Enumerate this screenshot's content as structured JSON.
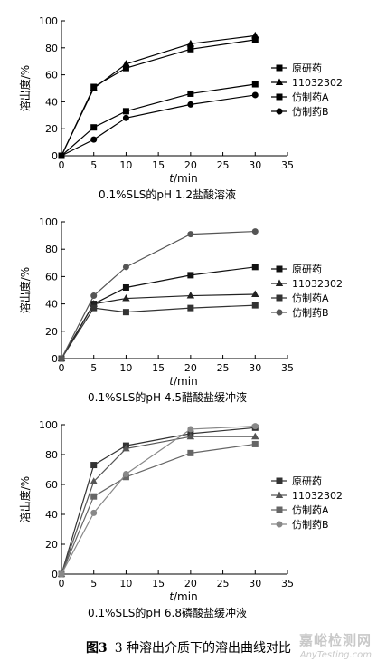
{
  "figure": {
    "label": "图3",
    "caption": "3 种溶出介质下的溶出曲线对比"
  },
  "watermark": {
    "line1": "嘉峪检测网",
    "line2": "AnyTesting.com"
  },
  "chart_data": [
    {
      "type": "line",
      "title": "0.1%SLS的pH 1.2盐酸溶液",
      "xlabel_italic": "t",
      "xlabel_rest": "/min",
      "ylabel": "溶出度/%",
      "xlim": [
        0,
        35
      ],
      "ylim": [
        0,
        100
      ],
      "xticks": [
        0,
        5,
        10,
        15,
        20,
        25,
        30,
        35
      ],
      "yticks": [
        0,
        20,
        40,
        60,
        80,
        100
      ],
      "x": [
        0,
        5,
        10,
        20,
        30
      ],
      "legend_position": "right",
      "series": [
        {
          "name": "原研药",
          "marker": "square",
          "color": "#000000",
          "values": [
            0,
            51,
            65,
            79,
            86
          ]
        },
        {
          "name": "11032302",
          "marker": "triangle",
          "color": "#000000",
          "values": [
            0,
            50,
            68,
            83,
            89
          ]
        },
        {
          "name": "仿制药A",
          "marker": "square",
          "color": "#000000",
          "values": [
            0,
            21,
            33,
            46,
            53
          ]
        },
        {
          "name": "仿制药B",
          "marker": "circle",
          "color": "#000000",
          "values": [
            0,
            12,
            28,
            38,
            45
          ]
        }
      ]
    },
    {
      "type": "line",
      "title": "0.1%SLS的pH 4.5醋酸盐缓冲液",
      "xlabel_italic": "t",
      "xlabel_rest": "/min",
      "ylabel": "溶出度/%",
      "xlim": [
        0,
        35
      ],
      "ylim": [
        0,
        100
      ],
      "xticks": [
        0,
        5,
        10,
        15,
        20,
        25,
        30,
        35
      ],
      "yticks": [
        0,
        20,
        40,
        60,
        80,
        100
      ],
      "x": [
        0,
        5,
        10,
        20,
        30
      ],
      "legend_position": "right",
      "series": [
        {
          "name": "原研药",
          "marker": "square",
          "color": "#111111",
          "values": [
            0,
            40,
            52,
            61,
            67
          ]
        },
        {
          "name": "11032302",
          "marker": "triangle",
          "color": "#222222",
          "values": [
            0,
            40,
            44,
            46,
            47
          ]
        },
        {
          "name": "仿制药A",
          "marker": "square",
          "color": "#333333",
          "values": [
            0,
            37,
            34,
            37,
            39
          ]
        },
        {
          "name": "仿制药B",
          "marker": "circle",
          "color": "#555555",
          "values": [
            0,
            46,
            67,
            91,
            93
          ]
        }
      ]
    },
    {
      "type": "line",
      "title": "0.1%SLS的pH 6.8磷酸盐缓冲液",
      "xlabel_italic": "t",
      "xlabel_rest": "/min",
      "ylabel": "溶出度/%",
      "xlim": [
        0,
        35
      ],
      "ylim": [
        0,
        100
      ],
      "xticks": [
        0,
        5,
        10,
        15,
        20,
        25,
        30,
        35
      ],
      "yticks": [
        0,
        20,
        40,
        60,
        80,
        100
      ],
      "x": [
        0,
        5,
        10,
        20,
        30
      ],
      "legend_position": "right",
      "series": [
        {
          "name": "原研药",
          "marker": "square",
          "color": "#333333",
          "values": [
            0,
            73,
            86,
            94,
            98
          ]
        },
        {
          "name": "11032302",
          "marker": "triangle",
          "color": "#555555",
          "values": [
            0,
            62,
            84,
            92,
            92
          ]
        },
        {
          "name": "仿制药A",
          "marker": "square",
          "color": "#666666",
          "values": [
            0,
            52,
            65,
            81,
            87
          ]
        },
        {
          "name": "仿制药B",
          "marker": "circle",
          "color": "#888888",
          "values": [
            0,
            41,
            67,
            97,
            99
          ]
        }
      ]
    }
  ]
}
